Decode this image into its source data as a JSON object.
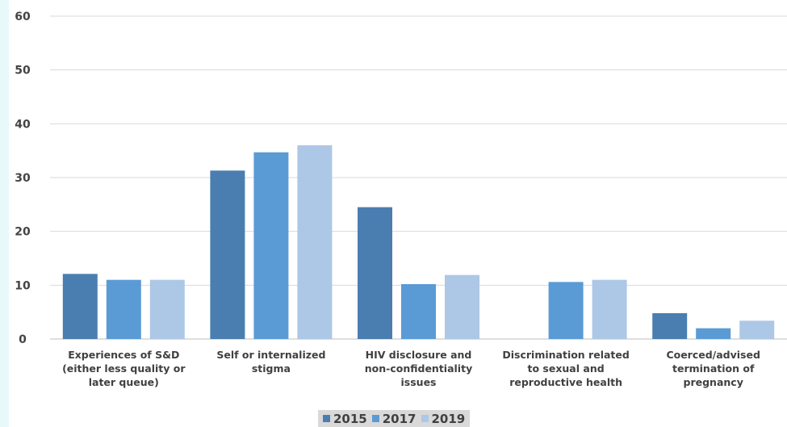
{
  "chart_data": {
    "type": "bar",
    "categories": [
      [
        "Experiences of S&D",
        "(either less quality or",
        "later queue)"
      ],
      [
        "Self or internalized",
        "stigma"
      ],
      [
        "HIV disclosure and",
        "non-confidentiality",
        "issues"
      ],
      [
        "Discrimination related",
        "to sexual and",
        "reproductive health"
      ],
      [
        "Coerced/advised",
        "termination of",
        "pregnancy"
      ]
    ],
    "series": [
      {
        "name": "2015",
        "color": "#4a7eb0",
        "values": [
          12.1,
          31.3,
          24.5,
          0,
          4.8
        ]
      },
      {
        "name": "2017",
        "color": "#5b9bd5",
        "values": [
          11.0,
          34.7,
          10.2,
          10.6,
          2.0
        ]
      },
      {
        "name": "2019",
        "color": "#adc7e6",
        "values": [
          11.0,
          36.0,
          11.9,
          11.0,
          3.4
        ]
      }
    ],
    "ylim": [
      0,
      60
    ],
    "yticks": [
      0,
      10,
      20,
      30,
      40,
      50,
      60
    ],
    "grid": true,
    "legend_position": "bottom-center",
    "title": "",
    "xlabel": "",
    "ylabel": ""
  }
}
